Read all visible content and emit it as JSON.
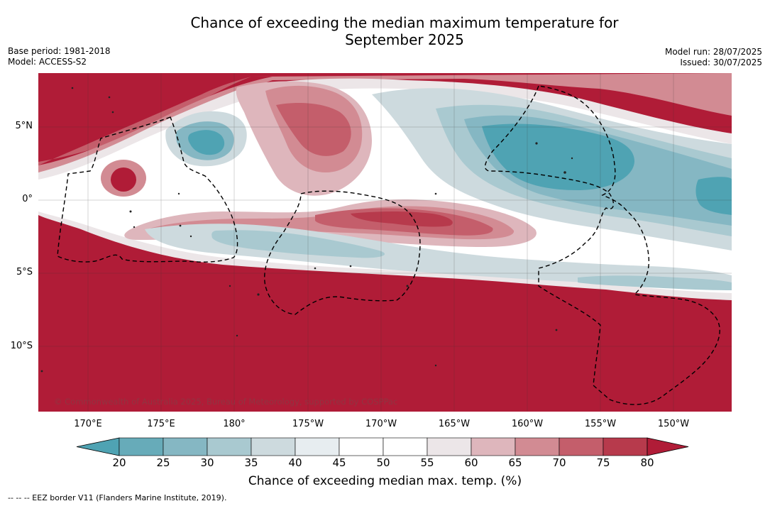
{
  "title_line1": "Chance of exceeding the median maximum temperature for",
  "title_line2": "September 2025",
  "meta_left": {
    "base_period": "Base period: 1981-2018",
    "model": "Model: ACCESS-S2"
  },
  "meta_right": {
    "model_run": "Model run: 28/07/2025",
    "issued": "Issued: 30/07/2025"
  },
  "copyright": "© Commonwealth of Australia 2025, Bureau of Meteorology, supported by COSPPac",
  "lat_labels": [
    "5°N",
    "0°",
    "5°S",
    "10°S"
  ],
  "lon_labels": [
    "170°E",
    "175°E",
    "180°",
    "175°W",
    "170°W",
    "165°W",
    "160°W",
    "155°W",
    "150°W"
  ],
  "colorbar": {
    "label": "Chance of exceeding median max. temp. (%)",
    "ticks": [
      "20",
      "25",
      "30",
      "35",
      "40",
      "45",
      "50",
      "55",
      "60",
      "65",
      "70",
      "75",
      "80"
    ],
    "colors": [
      "#4fa3b3",
      "#67abb9",
      "#85b7c3",
      "#a9c9d0",
      "#cddade",
      "#e7edf0",
      "#ffffff",
      "#ffffff",
      "#ece6e8",
      "#deb6bc",
      "#d28b93",
      "#c45e6b",
      "#b73a4c",
      "#b01c37"
    ]
  },
  "legend_note": "--  --  -- EEZ border V11 (Flanders Marine Institute, 2019)."
}
